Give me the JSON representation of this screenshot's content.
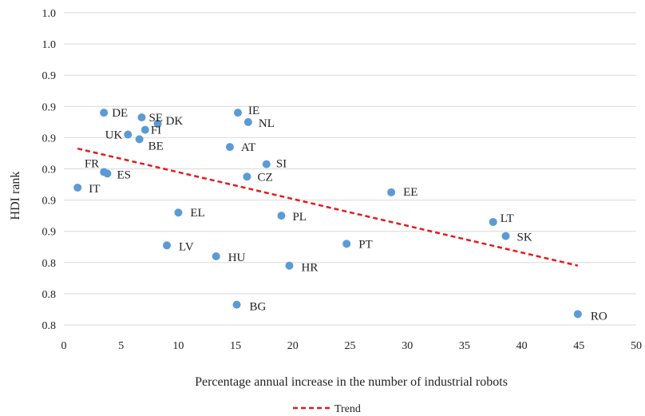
{
  "chart_data": {
    "type": "scatter",
    "xlabel": "Percentage annual increase in the number of industrial robots",
    "ylabel": "HDI rank",
    "xlim": [
      0,
      50
    ],
    "ylim": [
      0.8,
      1.0
    ],
    "x_ticks": [
      "0",
      "5",
      "10",
      "15",
      "20",
      "25",
      "30",
      "35",
      "40",
      "45",
      "50"
    ],
    "y_ticks": [
      "0.8",
      "0.8",
      "0.8",
      "0.9",
      "0.9",
      "0.9",
      "0.9",
      "0.9",
      "0.9",
      "1.0",
      "1.0"
    ],
    "grid": "horizontal",
    "legend": {
      "position": "bottom",
      "entries": [
        "Trend"
      ]
    },
    "series": [
      {
        "color": "#5b9bd5",
        "points": [
          {
            "label": "DE",
            "x": 3.5,
            "y": 0.936
          },
          {
            "label": "SE",
            "x": 6.8,
            "y": 0.933
          },
          {
            "label": "IE",
            "x": 15.2,
            "y": 0.936
          },
          {
            "label": "NL",
            "x": 16.1,
            "y": 0.93
          },
          {
            "label": "DK",
            "x": 8.2,
            "y": 0.929
          },
          {
            "label": "FI",
            "x": 7.1,
            "y": 0.925
          },
          {
            "label": "UK",
            "x": 5.6,
            "y": 0.922
          },
          {
            "label": "BE",
            "x": 6.6,
            "y": 0.919
          },
          {
            "label": "AT",
            "x": 14.5,
            "y": 0.914
          },
          {
            "label": "SI",
            "x": 17.7,
            "y": 0.903
          },
          {
            "label": "FR",
            "x": 3.5,
            "y": 0.898
          },
          {
            "label": "ES",
            "x": 3.8,
            "y": 0.897
          },
          {
            "label": "CZ",
            "x": 16.0,
            "y": 0.895
          },
          {
            "label": "IT",
            "x": 1.2,
            "y": 0.888
          },
          {
            "label": "EE",
            "x": 28.6,
            "y": 0.885
          },
          {
            "label": "EL",
            "x": 10.0,
            "y": 0.872
          },
          {
            "label": "PL",
            "x": 19.0,
            "y": 0.87
          },
          {
            "label": "LT",
            "x": 37.5,
            "y": 0.866
          },
          {
            "label": "SK",
            "x": 38.6,
            "y": 0.857
          },
          {
            "label": "LV",
            "x": 9.0,
            "y": 0.851
          },
          {
            "label": "PT",
            "x": 24.7,
            "y": 0.852
          },
          {
            "label": "HU",
            "x": 13.3,
            "y": 0.844
          },
          {
            "label": "HR",
            "x": 19.7,
            "y": 0.838
          },
          {
            "label": "BG",
            "x": 15.1,
            "y": 0.813
          },
          {
            "label": "RO",
            "x": 44.9,
            "y": 0.807
          }
        ]
      }
    ],
    "trend": {
      "name": "Trend",
      "color": "#e31a1c",
      "x": [
        1.2,
        44.9
      ],
      "y": [
        0.913,
        0.838
      ]
    }
  }
}
